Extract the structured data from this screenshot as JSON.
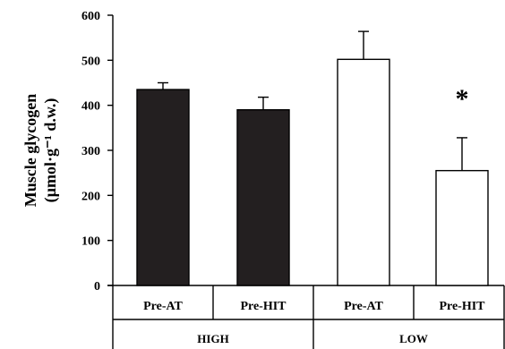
{
  "chart_data": {
    "type": "bar",
    "ylabel_line1": "Muscle glycogen",
    "ylabel_line2": "(µmol·g⁻¹ d.w.)",
    "ylim": [
      0,
      600
    ],
    "yticks": [
      "0",
      "100",
      "200",
      "300",
      "400",
      "500",
      "600"
    ],
    "categories": [
      "Pre-AT",
      "Pre-HIT",
      "Pre-AT",
      "Pre-HIT"
    ],
    "groups": [
      "HIGH",
      "LOW"
    ],
    "values": [
      435,
      390,
      502,
      255
    ],
    "errors": [
      15,
      28,
      62,
      73
    ],
    "annotation": "*",
    "colors": {
      "high_fill": "#231f20",
      "low_fill": "#ffffff",
      "stroke": "#000000"
    }
  }
}
